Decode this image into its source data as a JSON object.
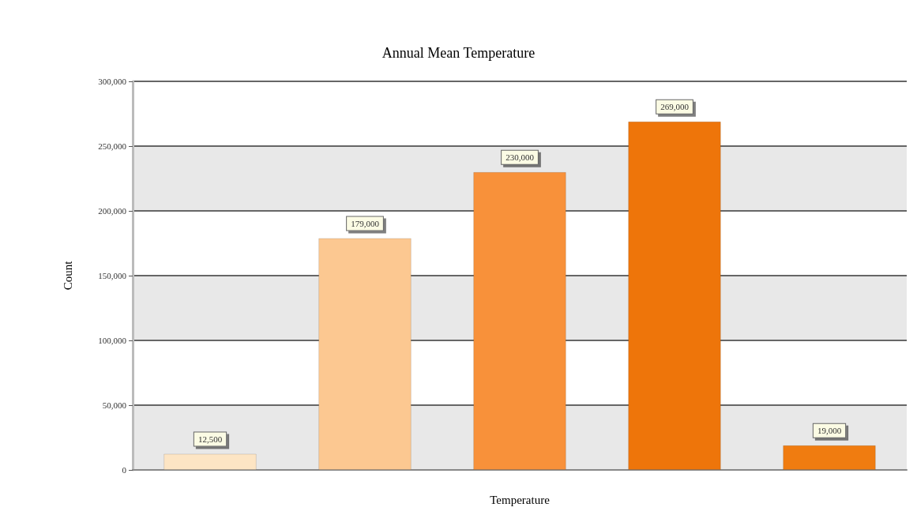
{
  "chart_data": {
    "type": "bar",
    "title": "Annual Mean Temperature",
    "xlabel": "Temperature",
    "ylabel": "Count",
    "categories": [
      null,
      null,
      null,
      null,
      null
    ],
    "values": [
      12500,
      179000,
      230000,
      269000,
      19000
    ],
    "colors": [
      "#fde5c4",
      "#fcc891",
      "#f8913a",
      "#ee750a",
      "#f07c10"
    ],
    "value_labels": [
      "12,500",
      "179,000",
      "230,000",
      "269,000",
      "19,000"
    ],
    "ylim": [
      0,
      300000
    ],
    "yticks": [
      {
        "value": 0,
        "label": "0"
      },
      {
        "value": 50000,
        "label": "50,000"
      },
      {
        "value": 100000,
        "label": "100,000"
      },
      {
        "value": 150000,
        "label": "150,000"
      },
      {
        "value": 200000,
        "label": "200,000"
      },
      {
        "value": 250000,
        "label": "250,000"
      },
      {
        "value": 300000,
        "label": "300,000"
      }
    ],
    "grid": "y"
  }
}
